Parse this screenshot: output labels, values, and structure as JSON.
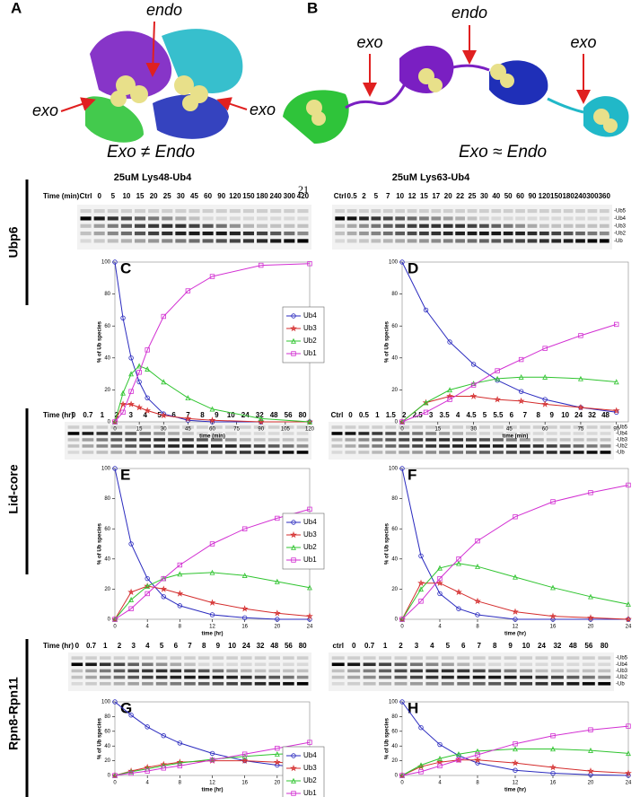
{
  "figure": {
    "A": {
      "label": "A",
      "annotations": [
        "endo",
        "exo",
        "exo"
      ],
      "caption": "Exo ≠ Endo"
    },
    "B": {
      "label": "B",
      "annotations": [
        "endo",
        "exo",
        "exo"
      ],
      "caption": "Exo ≈ Endo"
    },
    "page_number": "21"
  },
  "row_labels": [
    "Ubp6",
    "Lid-core",
    "Rpn8-Rpn11"
  ],
  "gels": [
    {
      "title": "25uM Lys48-Ub4",
      "label": "Time (min)",
      "lanes": [
        "Ctrl",
        "0",
        "5",
        "10",
        "15",
        "20",
        "25",
        "30",
        "45",
        "60",
        "90",
        "120",
        "150",
        "180",
        "240",
        "300",
        "420"
      ]
    },
    {
      "title": "25uM Lys63-Ub4",
      "lanes": [
        "Ctrl",
        "0.5",
        "2",
        "5",
        "7",
        "10",
        "12",
        "15",
        "17",
        "20",
        "22",
        "25",
        "30",
        "40",
        "50",
        "60",
        "90",
        "120",
        "150",
        "180",
        "240",
        "300",
        "360"
      ],
      "bands": [
        "-Ub5",
        "-Ub4",
        "-Ub3",
        "-Ub2",
        "-Ub"
      ]
    },
    {
      "label": "Time (hr)",
      "lanes": [
        "0",
        "0.7",
        "1",
        "2",
        "3",
        "4",
        "5",
        "6",
        "7",
        "8",
        "9",
        "10",
        "24",
        "32",
        "48",
        "56",
        "80"
      ]
    },
    {
      "lanes": [
        "Ctrl",
        "0",
        "0.5",
        "1",
        "1.5",
        "2",
        "2.5",
        "3",
        "3.5",
        "4",
        "4.5",
        "5",
        "5.5",
        "6",
        "7",
        "8",
        "9",
        "10",
        "24",
        "32",
        "48"
      ],
      "bands": [
        "-Ub5",
        "-Ub4",
        "-Ub3",
        "-Ub2",
        "-Ub"
      ]
    },
    {
      "label": "Time (hr)",
      "lanes": [
        "0",
        "0.7",
        "1",
        "2",
        "3",
        "4",
        "5",
        "6",
        "7",
        "8",
        "9",
        "10",
        "24",
        "32",
        "48",
        "56",
        "80"
      ]
    },
    {
      "lanes": [
        "ctrl",
        "0",
        "0.7",
        "1",
        "2",
        "3",
        "4",
        "5",
        "6",
        "7",
        "8",
        "9",
        "10",
        "24",
        "32",
        "48",
        "56",
        "80"
      ],
      "bands": [
        "-Ub5",
        "-Ub4",
        "-Ub3",
        "-Ub2",
        "-Ub"
      ]
    }
  ],
  "chart_data": [
    {
      "type": "line",
      "panel": "C",
      "xlabel": "time (min)",
      "ylabel": "% of Ub species",
      "xlim": [
        0,
        120
      ],
      "xticks": [
        0,
        15,
        30,
        45,
        60,
        75,
        90,
        105,
        120
      ],
      "ylim": [
        0,
        100
      ],
      "yticks": [
        0,
        20,
        40,
        60,
        80,
        100
      ],
      "legend": "right",
      "x": [
        0,
        5,
        10,
        15,
        20,
        30,
        45,
        60,
        90,
        120
      ],
      "series": [
        {
          "name": "Ub4",
          "color": "#2b2bbf",
          "marker": "circle",
          "values": [
            100,
            65,
            40,
            25,
            15,
            5,
            1,
            0,
            0,
            0
          ]
        },
        {
          "name": "Ub3",
          "color": "#d42c2c",
          "marker": "star",
          "values": [
            0,
            11,
            11,
            9,
            7,
            4,
            2,
            1,
            0,
            0
          ]
        },
        {
          "name": "Ub2",
          "color": "#2fc42f",
          "marker": "triangle",
          "values": [
            0,
            18,
            30,
            35,
            33,
            25,
            15,
            8,
            2,
            0
          ]
        },
        {
          "name": "Ub1",
          "color": "#d22fd2",
          "marker": "square",
          "values": [
            0,
            6,
            19,
            31,
            45,
            66,
            82,
            91,
            98,
            99
          ]
        }
      ]
    },
    {
      "type": "line",
      "panel": "D",
      "xlabel": "time (min)",
      "ylabel": "% of Ub species",
      "xlim": [
        0,
        95
      ],
      "xticks": [
        0,
        15,
        30,
        45,
        60,
        75,
        90
      ],
      "ylim": [
        0,
        100
      ],
      "yticks": [
        0,
        20,
        40,
        60,
        80,
        100
      ],
      "x": [
        0,
        10,
        20,
        30,
        40,
        50,
        60,
        75,
        90
      ],
      "series": [
        {
          "color": "#2b2bbf",
          "marker": "circle",
          "values": [
            100,
            70,
            50,
            36,
            26,
            19,
            14,
            9,
            6
          ]
        },
        {
          "color": "#d42c2c",
          "marker": "star",
          "values": [
            0,
            12,
            16,
            16,
            14,
            13,
            11,
            9,
            7
          ]
        },
        {
          "color": "#2fc42f",
          "marker": "triangle",
          "values": [
            0,
            12,
            20,
            24,
            27,
            28,
            28,
            27,
            25
          ]
        },
        {
          "color": "#d22fd2",
          "marker": "square",
          "values": [
            0,
            6,
            14,
            23,
            32,
            39,
            46,
            54,
            61
          ]
        }
      ]
    },
    {
      "type": "line",
      "panel": "E",
      "xlabel": "time (hr)",
      "ylabel": "% of Ub species",
      "xlim": [
        0,
        24
      ],
      "xticks": [
        0,
        4,
        8,
        12,
        16,
        20,
        24
      ],
      "ylim": [
        0,
        100
      ],
      "yticks": [
        0,
        20,
        40,
        60,
        80,
        100
      ],
      "legend": "right",
      "x": [
        0,
        2,
        4,
        6,
        8,
        12,
        16,
        20,
        24
      ],
      "series": [
        {
          "name": "Ub4",
          "color": "#2b2bbf",
          "marker": "circle",
          "values": [
            100,
            50,
            27,
            15,
            9,
            3,
            1,
            0,
            0
          ]
        },
        {
          "name": "Ub3",
          "color": "#d42c2c",
          "marker": "star",
          "values": [
            0,
            18,
            22,
            20,
            17,
            11,
            7,
            4,
            2
          ]
        },
        {
          "name": "Ub2",
          "color": "#2fc42f",
          "marker": "triangle",
          "values": [
            0,
            13,
            22,
            27,
            30,
            31,
            29,
            25,
            21
          ]
        },
        {
          "name": "Ub1",
          "color": "#d22fd2",
          "marker": "square",
          "values": [
            0,
            7,
            17,
            27,
            36,
            50,
            60,
            67,
            73
          ]
        }
      ]
    },
    {
      "type": "line",
      "panel": "F",
      "xlabel": "time (hr)",
      "ylabel": "% of Ub species",
      "xlim": [
        0,
        24
      ],
      "xticks": [
        0,
        4,
        8,
        12,
        16,
        20,
        24
      ],
      "ylim": [
        0,
        100
      ],
      "yticks": [
        0,
        20,
        40,
        60,
        80,
        100
      ],
      "x": [
        0,
        2,
        4,
        6,
        8,
        12,
        16,
        20,
        24
      ],
      "series": [
        {
          "color": "#2b2bbf",
          "marker": "circle",
          "values": [
            100,
            42,
            17,
            7,
            3,
            0,
            0,
            0,
            0
          ]
        },
        {
          "color": "#d42c2c",
          "marker": "star",
          "values": [
            0,
            24,
            24,
            18,
            12,
            5,
            2,
            1,
            0
          ]
        },
        {
          "color": "#2fc42f",
          "marker": "triangle",
          "values": [
            0,
            20,
            34,
            37,
            35,
            28,
            21,
            15,
            10
          ]
        },
        {
          "color": "#d22fd2",
          "marker": "square",
          "values": [
            0,
            12,
            27,
            40,
            52,
            68,
            78,
            84,
            89
          ]
        }
      ]
    },
    {
      "type": "line",
      "panel": "G",
      "xlabel": "time (hr)",
      "ylabel": "% of Ub species",
      "xlim": [
        0,
        24
      ],
      "xticks": [
        0,
        4,
        8,
        12,
        16,
        20,
        24
      ],
      "ylim": [
        0,
        100
      ],
      "yticks": [
        0,
        20,
        40,
        60,
        80,
        100
      ],
      "legend": "right",
      "x": [
        0,
        2,
        4,
        6,
        8,
        12,
        16,
        20,
        24
      ],
      "series": [
        {
          "name": "Ub4",
          "color": "#2b2bbf",
          "marker": "circle",
          "values": [
            100,
            82,
            66,
            54,
            44,
            30,
            20,
            14,
            10
          ]
        },
        {
          "name": "Ub3",
          "color": "#d42c2c",
          "marker": "star",
          "values": [
            0,
            6,
            11,
            15,
            18,
            20,
            20,
            18,
            15
          ]
        },
        {
          "name": "Ub2",
          "color": "#2fc42f",
          "marker": "triangle",
          "values": [
            0,
            5,
            9,
            13,
            17,
            22,
            26,
            29,
            30
          ]
        },
        {
          "name": "Ub1",
          "color": "#d22fd2",
          "marker": "square",
          "values": [
            0,
            3,
            6,
            10,
            13,
            21,
            29,
            37,
            45
          ]
        }
      ]
    },
    {
      "type": "line",
      "panel": "H",
      "xlabel": "time (hr)",
      "ylabel": "% of Ub species",
      "xlim": [
        0,
        24
      ],
      "xticks": [
        0,
        4,
        8,
        12,
        16,
        20,
        24
      ],
      "ylim": [
        0,
        100
      ],
      "yticks": [
        0,
        20,
        40,
        60,
        80,
        100
      ],
      "x": [
        0,
        2,
        4,
        6,
        8,
        12,
        16,
        20,
        24
      ],
      "series": [
        {
          "color": "#2b2bbf",
          "marker": "circle",
          "values": [
            100,
            65,
            42,
            27,
            17,
            7,
            3,
            1,
            0
          ]
        },
        {
          "color": "#d42c2c",
          "marker": "star",
          "values": [
            0,
            12,
            18,
            21,
            21,
            17,
            11,
            6,
            3
          ]
        },
        {
          "color": "#2fc42f",
          "marker": "triangle",
          "values": [
            0,
            14,
            23,
            29,
            33,
            36,
            36,
            34,
            30
          ]
        },
        {
          "color": "#d22fd2",
          "marker": "square",
          "values": [
            0,
            5,
            13,
            21,
            28,
            43,
            54,
            62,
            67
          ]
        }
      ]
    }
  ]
}
